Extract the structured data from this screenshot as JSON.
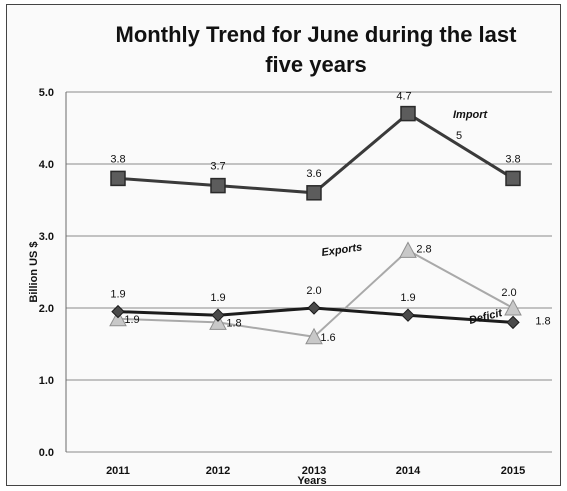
{
  "chart_data": {
    "type": "line",
    "title_line1": "Monthly Trend for June  during the last",
    "title_line2": "five years",
    "xlabel": "Years",
    "ylabel": "Billion US $",
    "categories": [
      "2011",
      "2012",
      "2013",
      "2014",
      "2015"
    ],
    "ylim": [
      0,
      5
    ],
    "yticks": [
      "0.0",
      "1.0",
      "2.0",
      "3.0",
      "4.0",
      "5.0"
    ],
    "grid": true,
    "series": [
      {
        "name": "Import",
        "values": [
          3.8,
          3.7,
          3.6,
          4.7,
          3.8
        ],
        "labels": [
          "3.8",
          "3.7",
          "3.6",
          "4.7",
          "3.8"
        ],
        "color": "#3a3a3a",
        "marker": "square"
      },
      {
        "name": "Exports",
        "values": [
          1.85,
          1.8,
          1.6,
          2.8,
          2.0
        ],
        "labels": [
          "1.9",
          "1.8",
          "1.6",
          "2.8",
          "2.0"
        ],
        "color": "#a9a9a9",
        "marker": "triangle"
      },
      {
        "name": "Deficit",
        "values": [
          1.95,
          1.9,
          2.0,
          1.9,
          1.8
        ],
        "labels": [
          "1.9",
          "1.9",
          "2.0",
          "1.9",
          "1.8"
        ],
        "color": "#1c1c1c",
        "marker": "diamond"
      }
    ],
    "extra_annotation": "5"
  }
}
